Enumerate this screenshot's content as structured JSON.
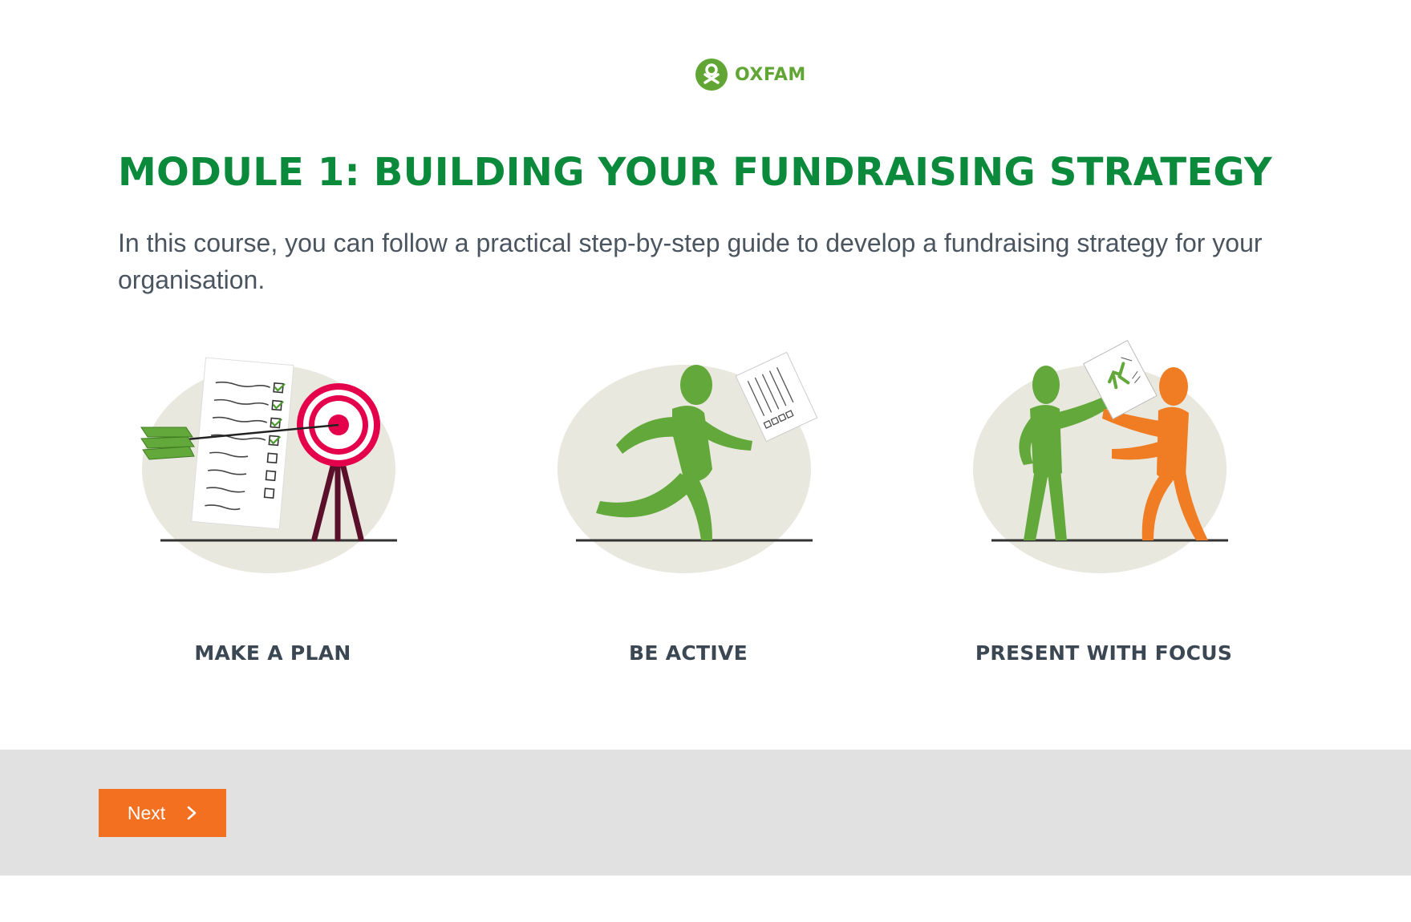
{
  "brand": {
    "name": "OXFAM",
    "color": "#61a534"
  },
  "content": {
    "title": "Module 1: Building your fundraising strategy",
    "intro": "In this course, you can follow a practical step-by-step guide to develop a fundraising strategy for your organisation."
  },
  "features": [
    {
      "label": "MAKE A PLAN",
      "illustration": "checklist-target-illustration"
    },
    {
      "label": "BE ACTIVE",
      "illustration": "running-person-illustration"
    },
    {
      "label": "PRESENT WITH FOCUS",
      "illustration": "presenting-people-illustration"
    }
  ],
  "navigation": {
    "next_label": "Next",
    "icon": "chevron-right-icon"
  },
  "colors": {
    "title": "#0b8a3c",
    "accent": "#f37021",
    "footer_bg": "#e1e1e1",
    "figure_green": "#62a83a",
    "figure_orange": "#f07d24",
    "target_red": "#e5004c"
  }
}
